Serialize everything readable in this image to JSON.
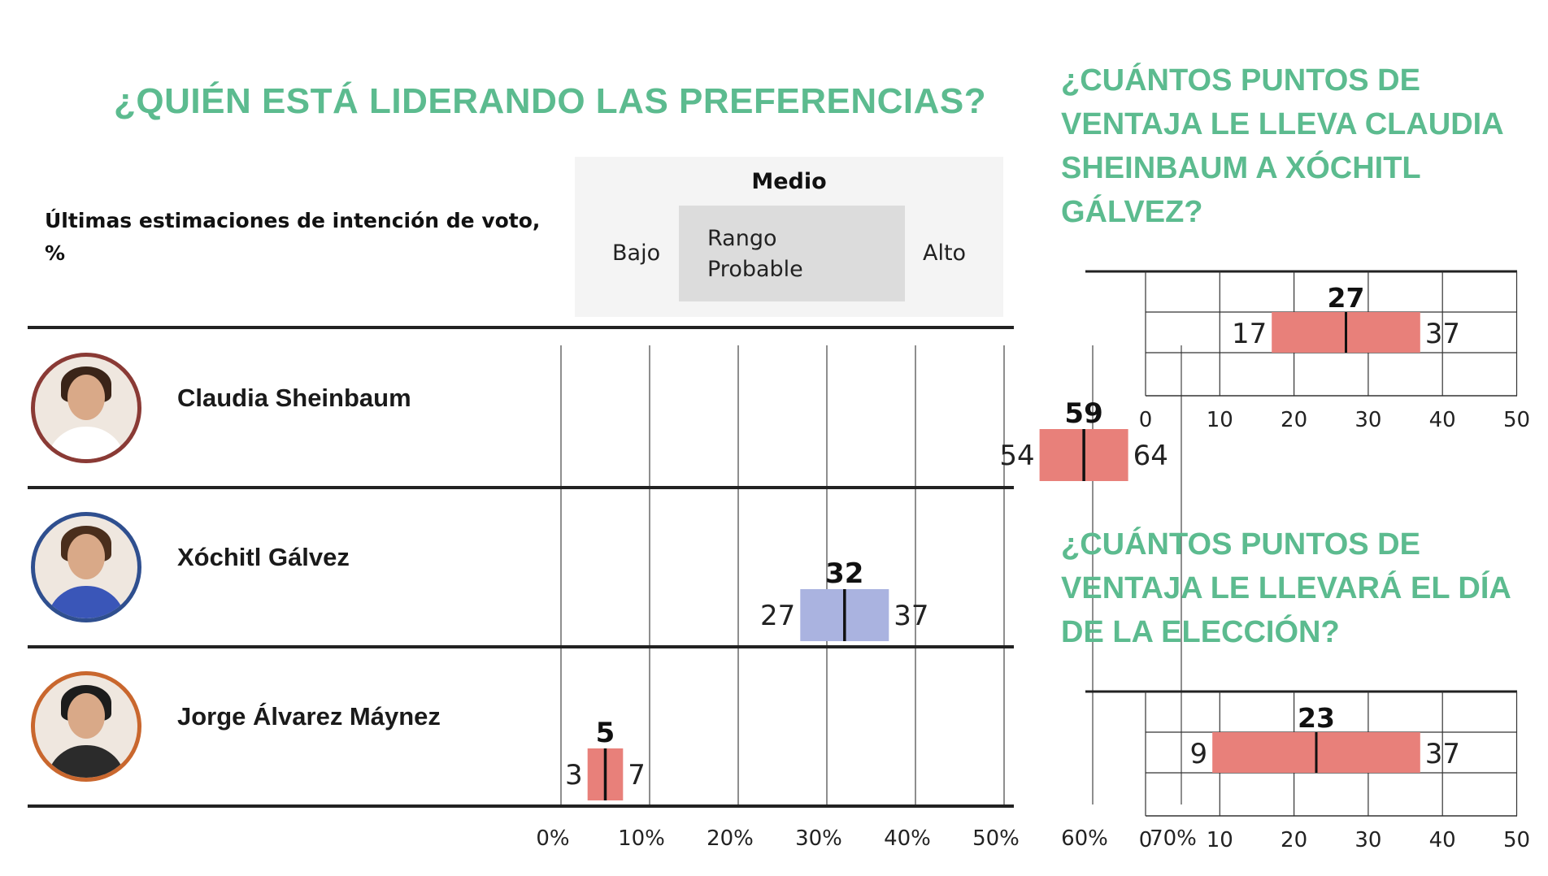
{
  "main_title": "¿QUIÉN ESTÁ LIDERANDO LAS PREFERENCIAS?",
  "subtitle": "Últimas estimaciones de intención de voto, %",
  "legend": {
    "title": "Medio",
    "range_label": "Rango Probable",
    "low_label": "Bajo",
    "high_label": "Alto"
  },
  "side_title_1": "¿CUÁNTOS PUNTOS DE VENTAJA LE LLEVA CLAUDIA SHEINBAUM A XÓCHITL GÁLVEZ?",
  "side_title_2": "¿CUÁNTOS PUNTOS DE VENTAJA LE LLEVARÁ EL DÍA DE LA ELECCIÓN?",
  "candidates": [
    {
      "name": "Claudia Sheinbaum",
      "ring_color": "#8a3a35",
      "hair_color": "#3a2418",
      "body_color": "#ffffff"
    },
    {
      "name": "Xóchitl Gálvez",
      "ring_color": "#2f4f8f",
      "hair_color": "#4a2e1c",
      "body_color": "#3a56b8"
    },
    {
      "name": "Jorge Álvarez Máynez",
      "ring_color": "#c9672e",
      "hair_color": "#1c1c1c",
      "body_color": "#2b2b2b"
    }
  ],
  "chart_data": [
    {
      "type": "bar",
      "categories": [
        "Claudia Sheinbaum",
        "Xóchitl Gálvez",
        "Jorge Álvarez Máynez"
      ],
      "series": [
        {
          "name": "Bajo",
          "values": [
            54,
            27,
            3
          ]
        },
        {
          "name": "Medio",
          "values": [
            59,
            32,
            5
          ]
        },
        {
          "name": "Alto",
          "values": [
            64,
            37,
            7
          ]
        }
      ],
      "x_ticks": [
        "0%",
        "10%",
        "20%",
        "30%",
        "40%",
        "50%",
        "60%",
        "70%"
      ],
      "xlim": [
        0,
        70
      ],
      "bar_colors": [
        "#e8807a",
        "#aab3e0",
        "#e8807a"
      ],
      "grid": true
    },
    {
      "type": "bar",
      "categories": [
        ""
      ],
      "series": [
        {
          "name": "Bajo",
          "values": [
            17
          ]
        },
        {
          "name": "Medio",
          "values": [
            27
          ]
        },
        {
          "name": "Alto",
          "values": [
            37
          ]
        }
      ],
      "x_ticks": [
        "0",
        "10",
        "20",
        "30",
        "40",
        "50"
      ],
      "xlim": [
        0,
        50
      ],
      "bar_colors": [
        "#e8807a"
      ],
      "grid": true
    },
    {
      "type": "bar",
      "categories": [
        ""
      ],
      "series": [
        {
          "name": "Bajo",
          "values": [
            9
          ]
        },
        {
          "name": "Medio",
          "values": [
            23
          ]
        },
        {
          "name": "Alto",
          "values": [
            37
          ]
        }
      ],
      "x_ticks": [
        "0",
        "10",
        "20",
        "30",
        "40",
        "50"
      ],
      "xlim": [
        0,
        50
      ],
      "bar_colors": [
        "#e8807a"
      ],
      "grid": true
    }
  ]
}
